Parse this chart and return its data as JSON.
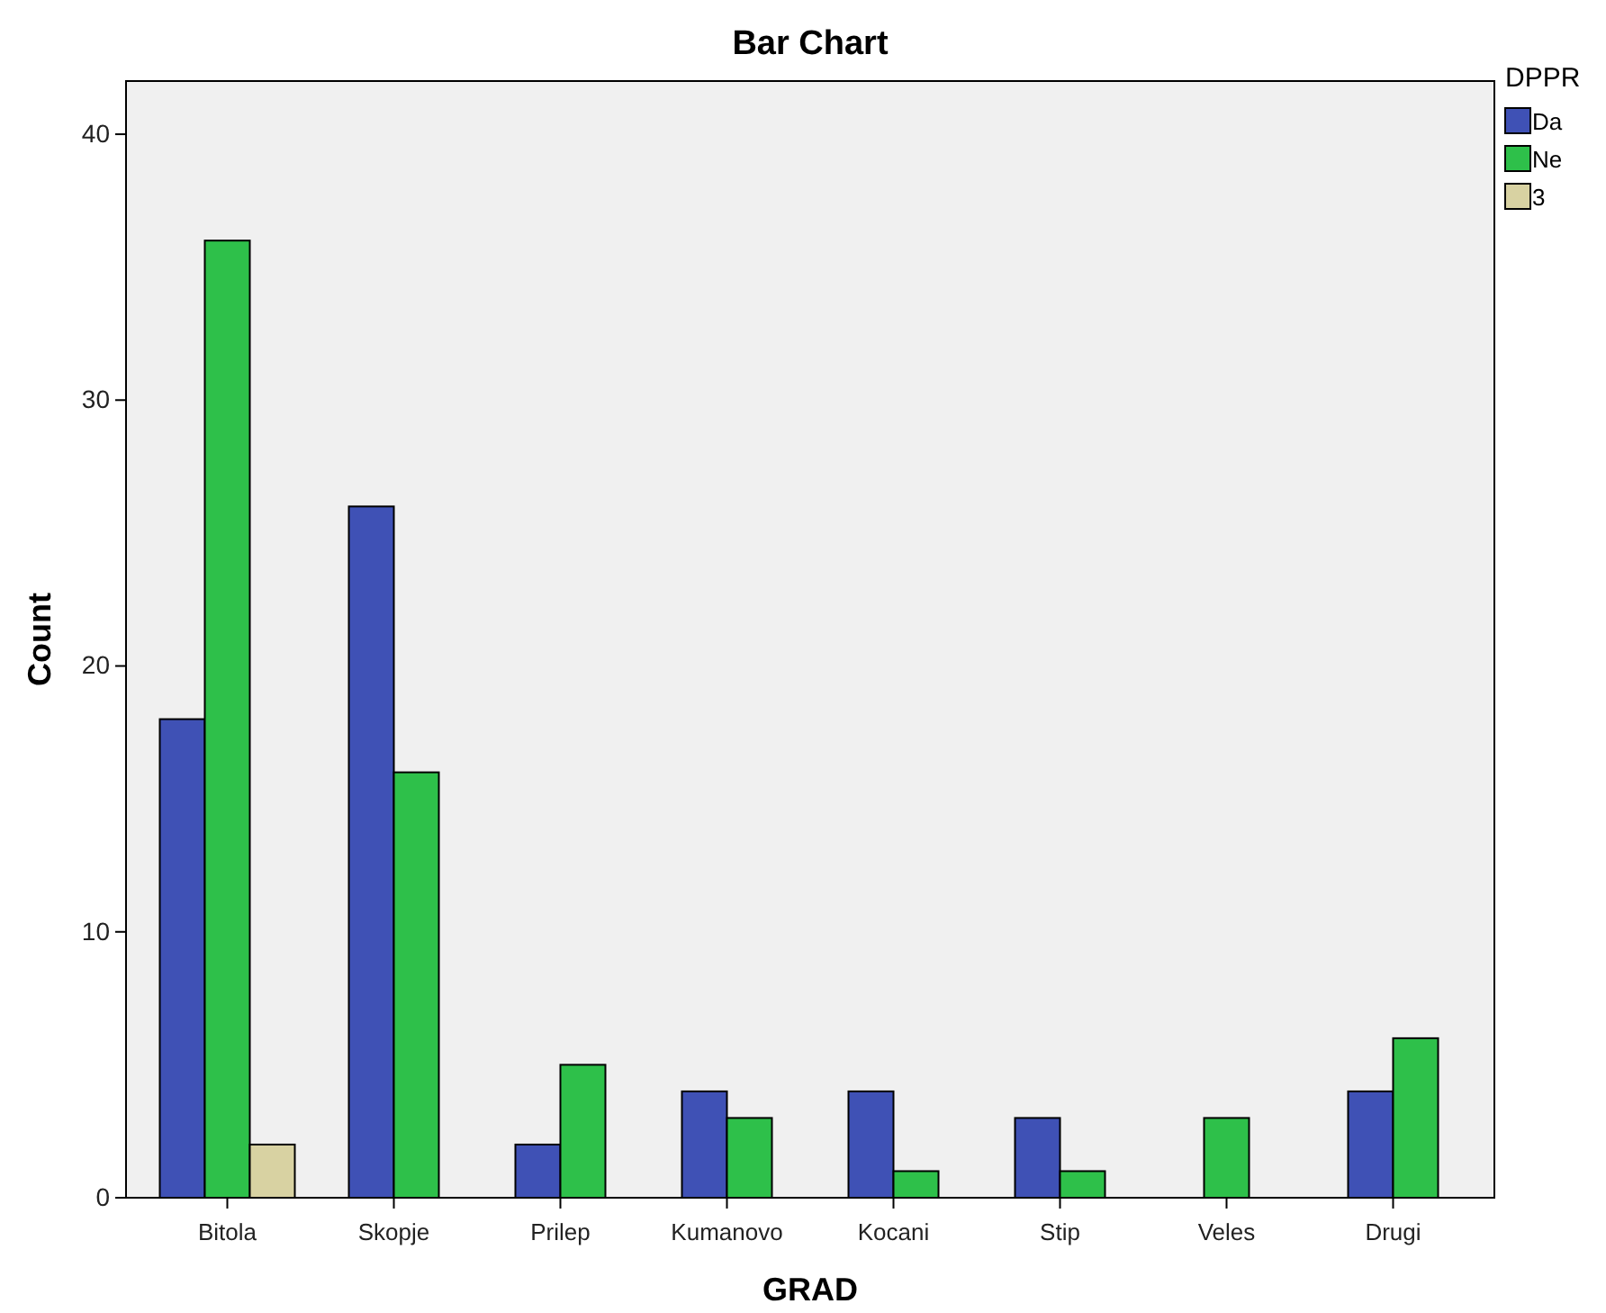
{
  "chart_data": {
    "type": "bar",
    "title": "Bar Chart",
    "xlabel": "GRAD",
    "ylabel": "Count",
    "legend_title": "DPPR",
    "legend": "top right",
    "categories": [
      "Bitola",
      "Skopje",
      "Prilep",
      "Kumanovo",
      "Kocani",
      "Stip",
      "Veles",
      "Drugi"
    ],
    "series": [
      {
        "name": "Da",
        "color": "#3f51b5",
        "values": [
          18,
          26,
          2,
          4,
          4,
          3,
          null,
          4
        ]
      },
      {
        "name": "Ne",
        "color": "#2ec04a",
        "values": [
          36,
          16,
          5,
          3,
          1,
          1,
          3,
          6
        ]
      },
      {
        "name": "3",
        "color": "#d8d2a2",
        "values": [
          2,
          null,
          null,
          null,
          null,
          null,
          null,
          null
        ]
      }
    ],
    "ylim": [
      0,
      42
    ],
    "yticks": [
      0,
      10,
      20,
      30,
      40
    ],
    "grid": false
  }
}
